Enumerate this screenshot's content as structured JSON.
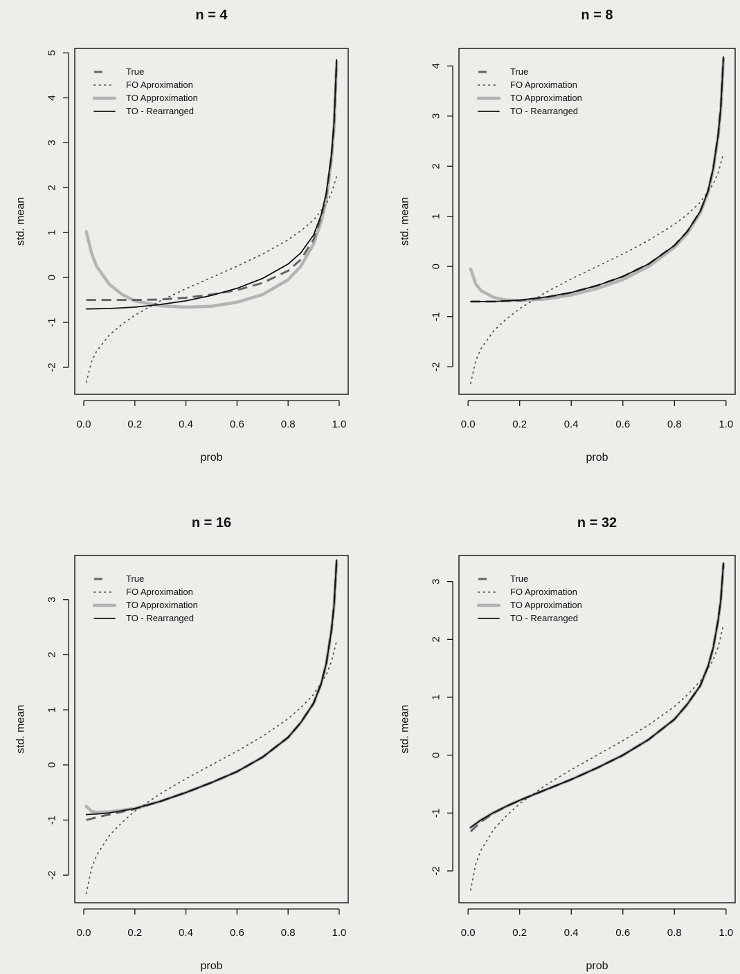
{
  "colors": {
    "background": "#ededea",
    "true": "#5e5e5e",
    "fo": "#555555",
    "to_approx": "#a9a9a9",
    "to_rearranged": "#111111"
  },
  "legend": {
    "entries": [
      "True",
      "FO Aproximation",
      "TO Approximation",
      "TO - Rearranged"
    ],
    "placement": "top-left"
  },
  "chart_data": [
    {
      "type": "line",
      "title": "n = 4",
      "xlabel": "prob",
      "ylabel": "std. mean",
      "xlim": [
        0,
        1
      ],
      "ylim": [
        -2.6,
        5.1
      ],
      "xticks": [
        0.0,
        0.2,
        0.4,
        0.6,
        0.8,
        1.0
      ],
      "xtick_labels": [
        "0.0",
        "0.2",
        "0.4",
        "0.6",
        "0.8",
        "1.0"
      ],
      "yticks": [
        -2,
        -1,
        0,
        1,
        2,
        3,
        4,
        5
      ],
      "ytick_labels": [
        "-2",
        "-1",
        "0",
        "1",
        "2",
        "3",
        "4",
        "5"
      ],
      "series": [
        {
          "name": "True",
          "x": [
            0.01,
            0.1,
            0.2,
            0.3,
            0.4,
            0.5,
            0.6,
            0.7,
            0.8,
            0.85,
            0.9,
            0.93,
            0.95,
            0.97,
            0.98,
            0.99
          ],
          "y": [
            -0.5,
            -0.5,
            -0.5,
            -0.49,
            -0.45,
            -0.38,
            -0.28,
            -0.12,
            0.15,
            0.4,
            0.85,
            1.35,
            1.85,
            2.7,
            3.4,
            4.8
          ]
        },
        {
          "name": "FO Aproximation",
          "x": [
            0.01,
            0.03,
            0.05,
            0.1,
            0.15,
            0.2,
            0.3,
            0.4,
            0.5,
            0.6,
            0.7,
            0.8,
            0.85,
            0.9,
            0.95,
            0.97,
            0.99
          ],
          "y": [
            -2.33,
            -1.88,
            -1.64,
            -1.28,
            -1.04,
            -0.84,
            -0.52,
            -0.25,
            0.0,
            0.25,
            0.52,
            0.84,
            1.04,
            1.28,
            1.64,
            1.88,
            2.25
          ]
        },
        {
          "name": "TO Approximation",
          "x": [
            0.01,
            0.03,
            0.05,
            0.1,
            0.15,
            0.2,
            0.3,
            0.4,
            0.5,
            0.6,
            0.7,
            0.8,
            0.85,
            0.9,
            0.93,
            0.95,
            0.97,
            0.98,
            0.99
          ],
          "y": [
            1.02,
            0.55,
            0.25,
            -0.15,
            -0.38,
            -0.52,
            -0.63,
            -0.66,
            -0.64,
            -0.55,
            -0.38,
            -0.05,
            0.25,
            0.75,
            1.25,
            1.75,
            2.65,
            3.35,
            4.8
          ]
        },
        {
          "name": "TO - Rearranged",
          "x": [
            0.01,
            0.1,
            0.2,
            0.3,
            0.4,
            0.5,
            0.6,
            0.7,
            0.8,
            0.85,
            0.9,
            0.93,
            0.95,
            0.97,
            0.98,
            0.99
          ],
          "y": [
            -0.7,
            -0.69,
            -0.66,
            -0.6,
            -0.52,
            -0.4,
            -0.24,
            -0.02,
            0.3,
            0.55,
            0.95,
            1.4,
            1.9,
            2.75,
            3.45,
            4.85
          ]
        }
      ]
    },
    {
      "type": "line",
      "title": "n = 8",
      "xlabel": "prob",
      "ylabel": "std. mean",
      "xlim": [
        0,
        1
      ],
      "ylim": [
        -2.55,
        4.35
      ],
      "xticks": [
        0.0,
        0.2,
        0.4,
        0.6,
        0.8,
        1.0
      ],
      "xtick_labels": [
        "0.0",
        "0.2",
        "0.4",
        "0.6",
        "0.8",
        "1.0"
      ],
      "yticks": [
        -2,
        -1,
        0,
        1,
        2,
        3,
        4
      ],
      "ytick_labels": [
        "-2",
        "-1",
        "0",
        "1",
        "2",
        "3",
        "4"
      ],
      "series": [
        {
          "name": "True",
          "x": [
            0.01,
            0.1,
            0.2,
            0.3,
            0.4,
            0.5,
            0.6,
            0.7,
            0.8,
            0.85,
            0.9,
            0.93,
            0.95,
            0.97,
            0.98,
            0.99
          ],
          "y": [
            -0.7,
            -0.7,
            -0.68,
            -0.62,
            -0.52,
            -0.38,
            -0.2,
            0.05,
            0.42,
            0.7,
            1.1,
            1.5,
            1.95,
            2.65,
            3.2,
            4.15
          ]
        },
        {
          "name": "FO Aproximation",
          "x": [
            0.01,
            0.03,
            0.05,
            0.1,
            0.15,
            0.2,
            0.3,
            0.4,
            0.5,
            0.6,
            0.7,
            0.8,
            0.85,
            0.9,
            0.95,
            0.97,
            0.99
          ],
          "y": [
            -2.33,
            -1.88,
            -1.64,
            -1.28,
            -1.04,
            -0.84,
            -0.52,
            -0.25,
            0.0,
            0.25,
            0.52,
            0.84,
            1.04,
            1.28,
            1.64,
            1.88,
            2.25
          ]
        },
        {
          "name": "TO Approximation",
          "x": [
            0.01,
            0.03,
            0.05,
            0.1,
            0.15,
            0.2,
            0.3,
            0.4,
            0.5,
            0.6,
            0.7,
            0.8,
            0.85,
            0.9,
            0.93,
            0.95,
            0.97,
            0.98,
            0.99
          ],
          "y": [
            -0.05,
            -0.35,
            -0.48,
            -0.62,
            -0.67,
            -0.68,
            -0.65,
            -0.57,
            -0.44,
            -0.26,
            0.0,
            0.38,
            0.66,
            1.07,
            1.47,
            1.92,
            2.62,
            3.17,
            4.15
          ]
        },
        {
          "name": "TO - Rearranged",
          "x": [
            0.01,
            0.1,
            0.2,
            0.3,
            0.4,
            0.5,
            0.6,
            0.7,
            0.8,
            0.85,
            0.9,
            0.93,
            0.95,
            0.97,
            0.98,
            0.99
          ],
          "y": [
            -0.7,
            -0.7,
            -0.67,
            -0.61,
            -0.52,
            -0.38,
            -0.2,
            0.05,
            0.42,
            0.7,
            1.1,
            1.5,
            1.95,
            2.65,
            3.2,
            4.18
          ]
        }
      ]
    },
    {
      "type": "line",
      "title": "n = 16",
      "xlabel": "prob",
      "ylabel": "std. mean",
      "xlim": [
        0,
        1
      ],
      "ylim": [
        -2.5,
        3.8
      ],
      "xticks": [
        0.0,
        0.2,
        0.4,
        0.6,
        0.8,
        1.0
      ],
      "xtick_labels": [
        "0.0",
        "0.2",
        "0.4",
        "0.6",
        "0.8",
        "1.0"
      ],
      "yticks": [
        -2,
        -1,
        0,
        1,
        2,
        3
      ],
      "ytick_labels": [
        "-2",
        "-1",
        "0",
        "1",
        "2",
        "3"
      ],
      "series": [
        {
          "name": "True",
          "x": [
            0.01,
            0.05,
            0.1,
            0.2,
            0.3,
            0.4,
            0.5,
            0.6,
            0.7,
            0.8,
            0.85,
            0.9,
            0.93,
            0.95,
            0.97,
            0.98,
            0.99
          ],
          "y": [
            -1.0,
            -0.95,
            -0.9,
            -0.8,
            -0.66,
            -0.5,
            -0.32,
            -0.12,
            0.14,
            0.5,
            0.77,
            1.12,
            1.48,
            1.85,
            2.45,
            2.9,
            3.7
          ]
        },
        {
          "name": "FO Aproximation",
          "x": [
            0.01,
            0.03,
            0.05,
            0.1,
            0.15,
            0.2,
            0.3,
            0.4,
            0.5,
            0.6,
            0.7,
            0.8,
            0.85,
            0.9,
            0.95,
            0.97,
            0.99
          ],
          "y": [
            -2.33,
            -1.88,
            -1.64,
            -1.28,
            -1.04,
            -0.84,
            -0.52,
            -0.25,
            0.0,
            0.25,
            0.52,
            0.84,
            1.04,
            1.28,
            1.64,
            1.88,
            2.25
          ]
        },
        {
          "name": "TO Approximation",
          "x": [
            0.01,
            0.03,
            0.05,
            0.1,
            0.2,
            0.3,
            0.4,
            0.5,
            0.6,
            0.7,
            0.8,
            0.85,
            0.9,
            0.93,
            0.95,
            0.97,
            0.98,
            0.99
          ],
          "y": [
            -0.75,
            -0.84,
            -0.86,
            -0.85,
            -0.79,
            -0.66,
            -0.5,
            -0.32,
            -0.12,
            0.14,
            0.5,
            0.77,
            1.12,
            1.48,
            1.85,
            2.45,
            2.9,
            3.7
          ]
        },
        {
          "name": "TO - Rearranged",
          "x": [
            0.01,
            0.05,
            0.1,
            0.2,
            0.3,
            0.4,
            0.5,
            0.6,
            0.7,
            0.8,
            0.85,
            0.9,
            0.93,
            0.95,
            0.97,
            0.98,
            0.99
          ],
          "y": [
            -0.9,
            -0.89,
            -0.87,
            -0.79,
            -0.66,
            -0.5,
            -0.32,
            -0.12,
            0.14,
            0.5,
            0.77,
            1.12,
            1.48,
            1.85,
            2.45,
            2.9,
            3.72
          ]
        }
      ]
    },
    {
      "type": "line",
      "title": "n = 32",
      "xlabel": "prob",
      "ylabel": "std. mean",
      "xlim": [
        0,
        1
      ],
      "ylim": [
        -2.55,
        3.45
      ],
      "xticks": [
        0.0,
        0.2,
        0.4,
        0.6,
        0.8,
        1.0
      ],
      "xtick_labels": [
        "0.0",
        "0.2",
        "0.4",
        "0.6",
        "0.8",
        "1.0"
      ],
      "yticks": [
        -2,
        -1,
        0,
        1,
        2,
        3
      ],
      "ytick_labels": [
        "-2",
        "-1",
        "0",
        "1",
        "2",
        "3"
      ],
      "series": [
        {
          "name": "True",
          "x": [
            0.01,
            0.05,
            0.1,
            0.15,
            0.2,
            0.3,
            0.4,
            0.5,
            0.6,
            0.7,
            0.8,
            0.85,
            0.9,
            0.93,
            0.95,
            0.97,
            0.98,
            0.99
          ],
          "y": [
            -1.32,
            -1.15,
            -1.0,
            -0.88,
            -0.78,
            -0.6,
            -0.42,
            -0.22,
            0.0,
            0.27,
            0.62,
            0.88,
            1.2,
            1.53,
            1.85,
            2.35,
            2.7,
            3.3
          ]
        },
        {
          "name": "FO Aproximation",
          "x": [
            0.01,
            0.03,
            0.05,
            0.1,
            0.15,
            0.2,
            0.3,
            0.4,
            0.5,
            0.6,
            0.7,
            0.8,
            0.85,
            0.9,
            0.95,
            0.97,
            0.99
          ],
          "y": [
            -2.33,
            -1.88,
            -1.64,
            -1.28,
            -1.04,
            -0.84,
            -0.52,
            -0.25,
            0.0,
            0.25,
            0.52,
            0.84,
            1.04,
            1.28,
            1.64,
            1.88,
            2.25
          ]
        },
        {
          "name": "TO Approximation",
          "x": [
            0.01,
            0.05,
            0.1,
            0.15,
            0.2,
            0.3,
            0.4,
            0.5,
            0.6,
            0.7,
            0.8,
            0.85,
            0.9,
            0.93,
            0.95,
            0.97,
            0.98,
            0.99
          ],
          "y": [
            -1.25,
            -1.12,
            -0.99,
            -0.88,
            -0.78,
            -0.6,
            -0.42,
            -0.22,
            0.0,
            0.27,
            0.62,
            0.88,
            1.2,
            1.53,
            1.85,
            2.35,
            2.7,
            3.3
          ]
        },
        {
          "name": "TO - Rearranged",
          "x": [
            0.01,
            0.05,
            0.1,
            0.15,
            0.2,
            0.3,
            0.4,
            0.5,
            0.6,
            0.7,
            0.8,
            0.85,
            0.9,
            0.93,
            0.95,
            0.97,
            0.98,
            0.99
          ],
          "y": [
            -1.25,
            -1.12,
            -0.99,
            -0.88,
            -0.78,
            -0.6,
            -0.42,
            -0.22,
            0.0,
            0.27,
            0.62,
            0.88,
            1.2,
            1.53,
            1.85,
            2.35,
            2.7,
            3.32
          ]
        }
      ]
    }
  ]
}
